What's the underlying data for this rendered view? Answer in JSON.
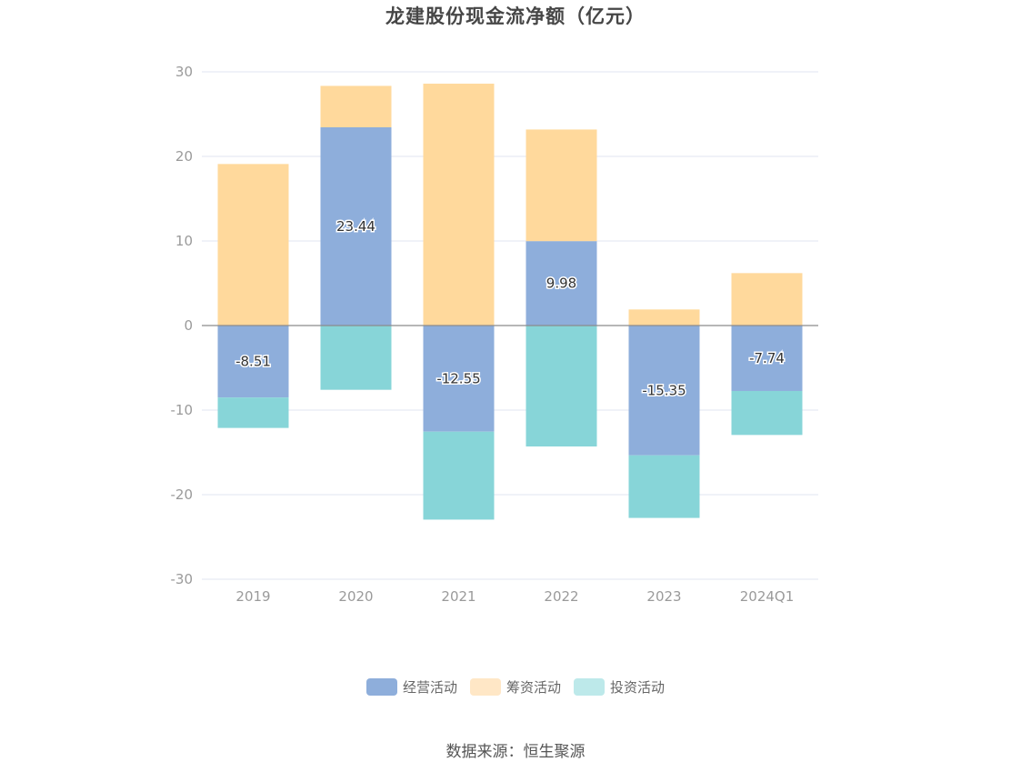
{
  "title": "龙建股份现金流净额（亿元）",
  "source": "数据来源：恒生聚源",
  "colors": {
    "operating": "#8eaedb",
    "financing": "#ffd99c",
    "investing": "#87d5d8",
    "legend_financing": "#ffe7c6",
    "legend_investing": "#bde9ea",
    "grid": "#e1e4f0",
    "zero_line": "#8c8c8c"
  },
  "chart_data": {
    "type": "bar",
    "stacked": true,
    "categories": [
      "2019",
      "2020",
      "2021",
      "2022",
      "2023",
      "2024Q1"
    ],
    "ylim": [
      -30,
      30
    ],
    "yticks": [
      30,
      20,
      10,
      0,
      -10,
      -20,
      -30
    ],
    "grid": true,
    "legend_position": "bottom",
    "series": [
      {
        "name": "经营活动",
        "values": [
          -8.51,
          23.44,
          -12.55,
          9.98,
          -15.35,
          -7.74
        ],
        "labels": [
          "-8.51",
          "23.44",
          "-12.55",
          "9.98",
          "-15.35",
          "-7.74"
        ]
      },
      {
        "name": "筹资活动",
        "values": [
          19.1,
          4.9,
          28.6,
          13.2,
          1.9,
          6.2
        ]
      },
      {
        "name": "投资活动",
        "values": [
          -3.6,
          -7.6,
          -10.4,
          -14.3,
          -7.4,
          -5.2
        ]
      }
    ]
  }
}
